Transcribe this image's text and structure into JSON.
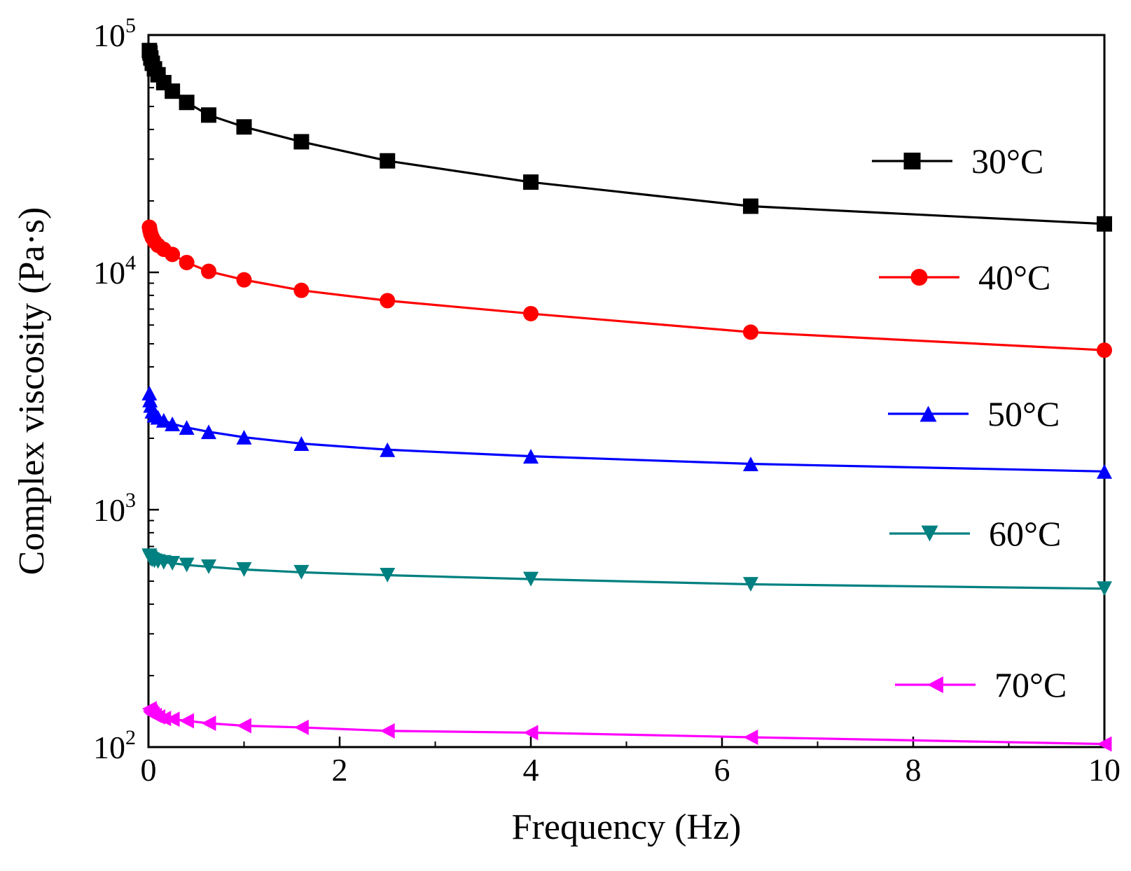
{
  "chart_data": {
    "type": "line",
    "title": "",
    "xlabel": "Frequency (Hz)",
    "ylabel": "Complex viscosity (Pa·s)",
    "xlim": [
      0,
      10
    ],
    "ylim": [
      100,
      100000
    ],
    "yscale": "log",
    "x_ticks": [
      "0",
      "2",
      "4",
      "6",
      "8",
      "10"
    ],
    "y_ticks": [
      {
        "base": "10",
        "exp": "2",
        "value": 100
      },
      {
        "base": "10",
        "exp": "3",
        "value": 1000
      },
      {
        "base": "10",
        "exp": "4",
        "value": 10000
      },
      {
        "base": "10",
        "exp": "5",
        "value": 100000
      }
    ],
    "legend_position": "right",
    "x": [
      0.01,
      0.016,
      0.025,
      0.04,
      0.063,
      0.1,
      0.16,
      0.25,
      0.4,
      0.63,
      1,
      1.6,
      2.5,
      4,
      6.3,
      10
    ],
    "series": [
      {
        "name": "30°C",
        "color": "#000000",
        "marker": "square",
        "values": [
          86000,
          84000,
          80000,
          76000,
          72000,
          68000,
          63000,
          58000,
          52000,
          46000,
          41000,
          35500,
          29500,
          24000,
          19000,
          16000
        ]
      },
      {
        "name": "40°C",
        "color": "#ff0000",
        "marker": "circle",
        "values": [
          15500,
          15000,
          14500,
          14000,
          13500,
          13000,
          12500,
          11900,
          11000,
          10100,
          9300,
          8400,
          7600,
          6700,
          5600,
          4700
        ]
      },
      {
        "name": "50°C",
        "color": "#0000ff",
        "marker": "triangle-up",
        "values": [
          3100,
          2900,
          2750,
          2600,
          2500,
          2450,
          2380,
          2300,
          2220,
          2130,
          2020,
          1900,
          1790,
          1680,
          1560,
          1450
        ]
      },
      {
        "name": "60°C",
        "color": "#008080",
        "marker": "triangle-down",
        "values": [
          640,
          630,
          620,
          615,
          610,
          605,
          600,
          595,
          585,
          575,
          560,
          545,
          530,
          510,
          485,
          465
        ]
      },
      {
        "name": "70°C",
        "color": "#ff00ff",
        "marker": "triangle-left",
        "values": [
          145,
          142,
          140,
          138,
          136,
          134,
          132,
          131,
          129,
          126,
          123,
          121,
          117,
          115,
          110,
          103
        ]
      }
    ]
  }
}
